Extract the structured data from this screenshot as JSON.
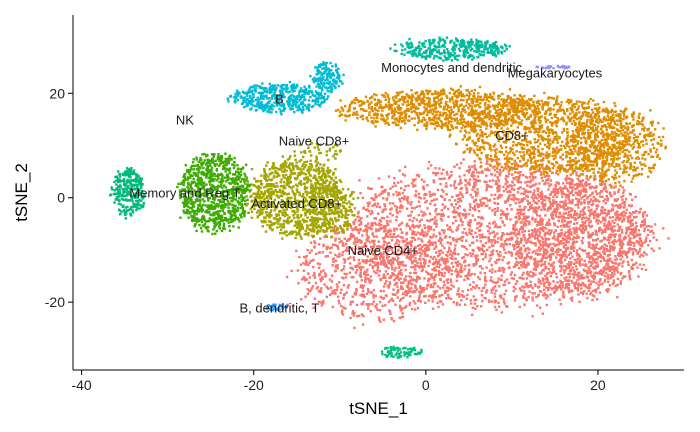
{
  "chart_data": {
    "type": "scatter",
    "xlabel": "tSNE_1",
    "ylabel": "tSNE_2",
    "xlim": [
      -41,
      30
    ],
    "ylim": [
      -33,
      35
    ],
    "x_ticks": [
      "-40",
      "-20",
      "0",
      "20"
    ],
    "y_ticks": [
      "-20",
      "0",
      "20"
    ],
    "x_tick_values": [
      -40,
      -20,
      0,
      20
    ],
    "y_tick_values": [
      -20,
      0,
      20
    ],
    "grid": false,
    "legend": "none",
    "clusters": [
      {
        "name": "Naive CD4+",
        "color": "#F8766D",
        "label_x": -5,
        "label_y": -10,
        "blobs": [
          {
            "cx": 8,
            "cy": -7,
            "rx": 19,
            "ry": 15,
            "n": 2400
          },
          {
            "cx": 18,
            "cy": -8,
            "rx": 9,
            "ry": 12,
            "n": 900
          },
          {
            "cx": -6,
            "cy": -14,
            "rx": 10,
            "ry": 10,
            "n": 700
          }
        ]
      },
      {
        "name": "CD8+",
        "color": "#DE8C00",
        "label_x": 10,
        "label_y": 12,
        "blobs": [
          {
            "cx": 2,
            "cy": 17,
            "rx": 13,
            "ry": 4,
            "n": 900
          },
          {
            "cx": 14,
            "cy": 12,
            "rx": 11,
            "ry": 8,
            "n": 1100
          },
          {
            "cx": 22,
            "cy": 10,
            "rx": 6,
            "ry": 8,
            "n": 500
          }
        ]
      },
      {
        "name": "Activated CD8+",
        "color": "#A3A500",
        "label_x": -15,
        "label_y": -1,
        "blobs": [
          {
            "cx": -15,
            "cy": 0,
            "rx": 6,
            "ry": 8,
            "n": 900
          },
          {
            "cx": -11,
            "cy": -2,
            "rx": 3,
            "ry": 6,
            "n": 200
          }
        ]
      },
      {
        "name": "Naive CD8+",
        "color": "#A3A500",
        "label_x": -13,
        "label_y": 11,
        "blobs": [
          {
            "cx": -12,
            "cy": 9,
            "rx": 3,
            "ry": 2,
            "n": 40
          }
        ]
      },
      {
        "name": "Memory and Reg T",
        "color": "#3EAB00",
        "label_x": -28,
        "label_y": 1,
        "blobs": [
          {
            "cx": -24.5,
            "cy": 1,
            "rx": 4.5,
            "ry": 8,
            "n": 800
          }
        ]
      },
      {
        "name": "NK",
        "color": "#00BA7A",
        "label_x": -28,
        "label_y": 15,
        "blobs": [
          {
            "cx": -34.5,
            "cy": 1,
            "rx": 2,
            "ry": 5,
            "n": 260
          }
        ]
      },
      {
        "name": "B",
        "color": "#00BBD3",
        "label_x": -17,
        "label_y": 19,
        "blobs": [
          {
            "cx": -17,
            "cy": 19,
            "rx": 6,
            "ry": 3,
            "n": 420
          },
          {
            "cx": -11.5,
            "cy": 23,
            "rx": 2,
            "ry": 3,
            "n": 140
          }
        ]
      },
      {
        "name": "Monocytes and dendritic",
        "color": "#00BB9E",
        "label_x": 3,
        "label_y": 25,
        "blobs": [
          {
            "cx": 3,
            "cy": 28.5,
            "rx": 7,
            "ry": 2.2,
            "n": 350
          }
        ]
      },
      {
        "name": "Megakaryocytes",
        "color": "#9590FF",
        "label_x": 15,
        "label_y": 24,
        "blobs": [
          {
            "cx": 15,
            "cy": 25,
            "rx": 2.5,
            "ry": 0.3,
            "n": 30
          }
        ]
      },
      {
        "name": "B, dendritic, T",
        "color": "#35A2FF",
        "label_x": -17,
        "label_y": -21,
        "blobs": [
          {
            "cx": -17.5,
            "cy": -21,
            "rx": 1.5,
            "ry": 0.7,
            "n": 30
          }
        ]
      },
      {
        "name": "",
        "color": "#00BF7D",
        "label_x": null,
        "label_y": null,
        "blobs": [
          {
            "cx": -3,
            "cy": -29.5,
            "rx": 2.5,
            "ry": 1.2,
            "n": 70
          }
        ]
      }
    ]
  }
}
